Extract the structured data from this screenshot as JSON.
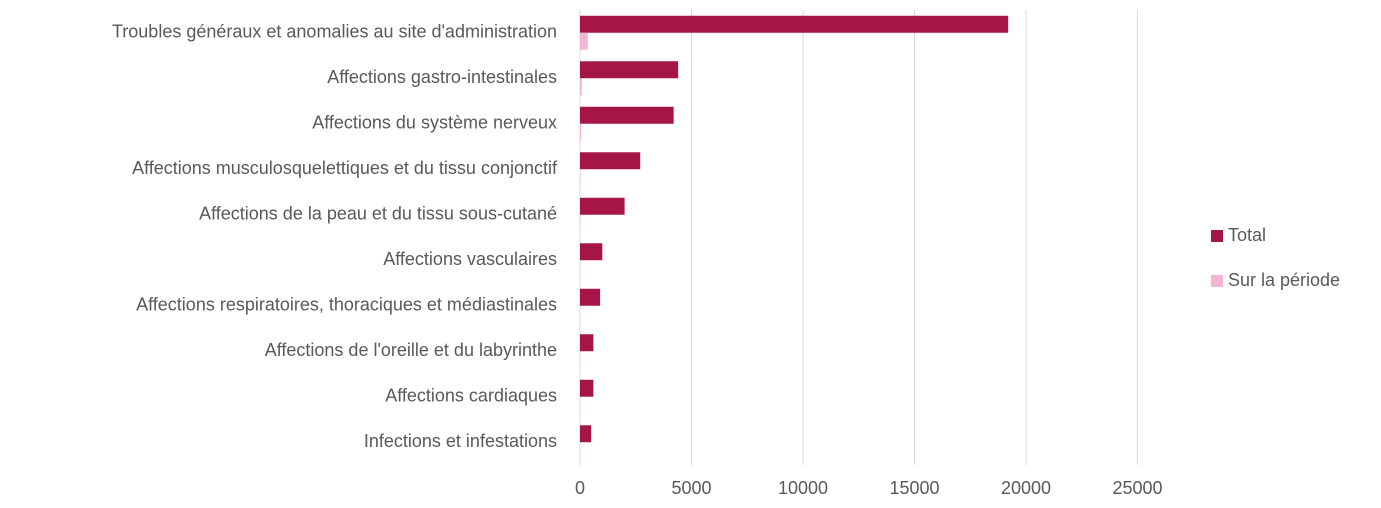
{
  "chart_data": {
    "type": "bar",
    "orientation": "horizontal",
    "categories": [
      "Troubles généraux et anomalies au site d'administration",
      "Affections gastro-intestinales",
      "Affections du système nerveux",
      "Affections musculosquelettiques et du tissu conjonctif",
      "Affections de la peau et du tissu sous-cutané",
      "Affections vasculaires",
      "Affections respiratoires, thoraciques et médiastinales",
      "Affections de l'oreille et du labyrinthe",
      "Affections cardiaques",
      "Infections et infestations"
    ],
    "series": [
      {
        "name": "Total",
        "color": "#a51547",
        "values": [
          19200,
          4400,
          4200,
          2700,
          2000,
          1000,
          900,
          600,
          600,
          500
        ]
      },
      {
        "name": "Sur la période",
        "color": "#f2b6d2",
        "values": [
          350,
          80,
          50,
          20,
          20,
          10,
          10,
          10,
          10,
          10
        ]
      }
    ],
    "xlim": [
      0,
      27000
    ],
    "xticks": [
      0,
      5000,
      10000,
      15000,
      20000,
      25000
    ],
    "grid": true,
    "legend": "right"
  }
}
